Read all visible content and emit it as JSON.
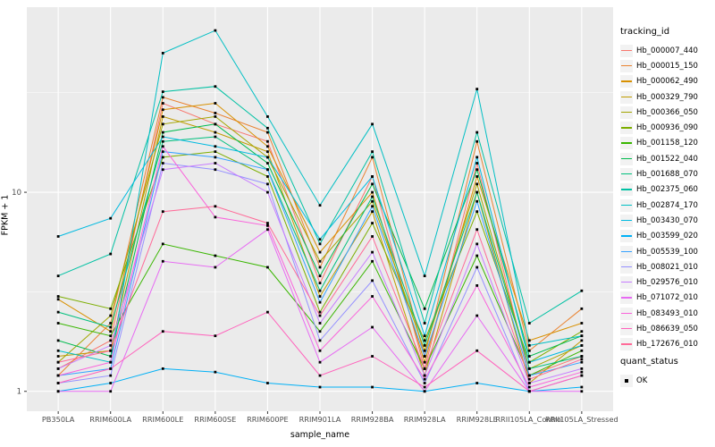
{
  "figure": {
    "y_axis_title": "FPKM + 1",
    "x_axis_title": "sample_name",
    "y_ticks": [
      {
        "label": "1",
        "value": 1
      },
      {
        "label": "10",
        "value": 10
      }
    ],
    "legend_tracking_title": "tracking_id",
    "legend_quant_title": "quant_status",
    "legend_quant_items": [
      {
        "label": "OK",
        "color": "#000000"
      }
    ],
    "colors": {
      "panel_background": "#EBEBEB",
      "gridline": "#FFFFFF",
      "tick_text": "#4D4D4D",
      "point": "#000000"
    }
  },
  "chart_data": {
    "type": "line",
    "title": "",
    "xlabel": "sample_name",
    "ylabel": "FPKM + 1",
    "y_scale": "log10",
    "ylim": [
      0.9,
      80
    ],
    "grid": true,
    "legend_position": "right",
    "point_marker": "black-square",
    "categories": [
      "PB350LA",
      "RRIM600LA",
      "RRIM600LE",
      "RRIM600SE",
      "RRIM600PE",
      "RRIM901LA",
      "RRIM928BA",
      "RRIM928LA",
      "RRIM928LE",
      "RRII105LA_Control",
      "RRII105LA_Stressed"
    ],
    "minor_gridline_values": [
      3.162,
      31.62
    ],
    "series": [
      {
        "name": "Hb_000007_440",
        "color": "#F8766D",
        "values": [
          1.3,
          1.8,
          28,
          22,
          18,
          3.5,
          12,
          1.3,
          14,
          1.2,
          1.5
        ]
      },
      {
        "name": "Hb_000015_150",
        "color": "#EA8331",
        "values": [
          1.2,
          2.2,
          30,
          25,
          20,
          4.2,
          15,
          1.5,
          18,
          1.6,
          2.6
        ]
      },
      {
        "name": "Hb_000062_490",
        "color": "#D89000",
        "values": [
          2.9,
          2.0,
          26,
          28,
          17,
          5.0,
          10,
          1.4,
          12,
          1.8,
          2.2
        ]
      },
      {
        "name": "Hb_000329_790",
        "color": "#C09B00",
        "values": [
          1.5,
          1.6,
          24,
          20,
          16,
          3.0,
          8,
          1.2,
          10,
          1.1,
          1.8
        ]
      },
      {
        "name": "Hb_000366_050",
        "color": "#A3A500",
        "values": [
          1.4,
          2.4,
          22,
          24,
          15,
          4.5,
          9,
          1.6,
          11,
          1.3,
          1.7
        ]
      },
      {
        "name": "Hb_000936_090",
        "color": "#7CAE00",
        "values": [
          3.0,
          2.6,
          15,
          16,
          12,
          2.5,
          7,
          1.8,
          8,
          1.4,
          2.0
        ]
      },
      {
        "name": "Hb_001158_120",
        "color": "#39B600",
        "values": [
          2.2,
          1.9,
          5.5,
          4.8,
          4.2,
          2.0,
          4.5,
          1.3,
          4.8,
          1.2,
          1.6
        ]
      },
      {
        "name": "Hb_001522_040",
        "color": "#00BB4E",
        "values": [
          1.8,
          1.5,
          20,
          22,
          14,
          3.8,
          11,
          2.6,
          13,
          1.5,
          1.9
        ]
      },
      {
        "name": "Hb_001688_070",
        "color": "#00BF7D",
        "values": [
          2.5,
          2.1,
          18,
          19,
          13,
          3.2,
          9.5,
          1.7,
          10,
          1.3,
          1.5
        ]
      },
      {
        "name": "Hb_002375_060",
        "color": "#00C1A3",
        "values": [
          3.8,
          4.9,
          32,
          34,
          21,
          5.5,
          16,
          2.2,
          20,
          2.2,
          3.2
        ]
      },
      {
        "name": "Hb_002874_170",
        "color": "#00BFC4",
        "values": [
          1.6,
          1.4,
          50,
          65,
          24,
          8.6,
          22,
          3.8,
          33,
          1.7,
          1.9
        ]
      },
      {
        "name": "Hb_003430_070",
        "color": "#00BAE0",
        "values": [
          6.0,
          7.4,
          19,
          17,
          15,
          5.8,
          12,
          1.9,
          15,
          1.4,
          1.7
        ]
      },
      {
        "name": "Hb_003599_020",
        "color": "#00B0F6",
        "values": [
          1.0,
          1.1,
          1.3,
          1.25,
          1.1,
          1.05,
          1.05,
          1.0,
          1.1,
          1.0,
          1.05
        ]
      },
      {
        "name": "Hb_005539_100",
        "color": "#35A2FF",
        "values": [
          1.2,
          1.3,
          16,
          15,
          13,
          2.8,
          8.5,
          1.5,
          9,
          1.2,
          1.4
        ]
      },
      {
        "name": "Hb_008021_010",
        "color": "#9590FF",
        "values": [
          1.1,
          1.2,
          14,
          13,
          11,
          1.8,
          3.6,
          1.1,
          4.2,
          1.0,
          1.2
        ]
      },
      {
        "name": "Hb_029576_010",
        "color": "#C77CFF",
        "values": [
          1.3,
          1.7,
          13,
          14,
          10,
          2.2,
          5.0,
          1.2,
          5.5,
          1.1,
          1.3
        ]
      },
      {
        "name": "Hb_071072_010",
        "color": "#E76BF3",
        "values": [
          1.0,
          1.0,
          4.5,
          4.2,
          6.5,
          1.4,
          2.1,
          1.0,
          2.4,
          1.0,
          1.0
        ]
      },
      {
        "name": "Hb_083493_010",
        "color": "#FA62DB",
        "values": [
          1.2,
          1.4,
          17,
          7.5,
          6.8,
          1.6,
          3.0,
          1.15,
          3.4,
          1.05,
          1.25
        ]
      },
      {
        "name": "Hb_086639_050",
        "color": "#FF62BC",
        "values": [
          1.1,
          1.3,
          2.0,
          1.9,
          2.5,
          1.2,
          1.5,
          1.05,
          1.6,
          1.0,
          1.2
        ]
      },
      {
        "name": "Hb_172676_010",
        "color": "#FF6A98",
        "values": [
          1.4,
          1.6,
          8.0,
          8.5,
          7.0,
          2.4,
          6.0,
          1.3,
          6.5,
          1.15,
          1.45
        ]
      }
    ]
  }
}
